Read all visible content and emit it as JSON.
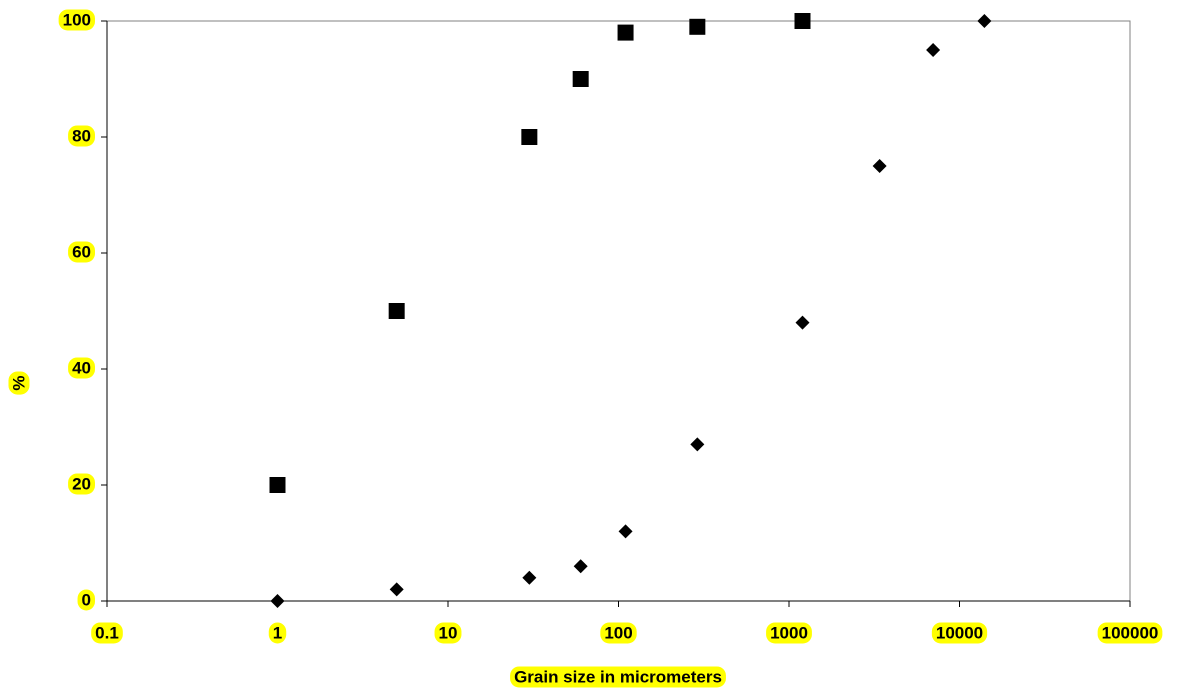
{
  "chart_data": {
    "type": "scatter",
    "x_label": "Grain size in micrometers",
    "y_label": "%",
    "xscale": "log",
    "xlim": [
      0.1,
      100000
    ],
    "xticks": [
      0.1,
      1,
      10,
      100,
      1000,
      10000,
      100000
    ],
    "ylim": [
      0,
      100
    ],
    "yticks": [
      0,
      20,
      40,
      60,
      80,
      100
    ],
    "label_highlight": "#ffff00",
    "series": [
      {
        "marker": "square",
        "color": "#000000",
        "x": [
          1,
          5,
          30,
          60,
          110,
          290,
          1200
        ],
        "values": [
          20,
          50,
          80,
          90,
          98,
          99,
          100
        ]
      },
      {
        "marker": "diamond",
        "color": "#000000",
        "x": [
          1,
          5,
          30,
          60,
          110,
          290,
          1200,
          3400,
          7000,
          14000
        ],
        "values": [
          0,
          2,
          4,
          6,
          12,
          27,
          48,
          75,
          95,
          100
        ]
      }
    ]
  }
}
